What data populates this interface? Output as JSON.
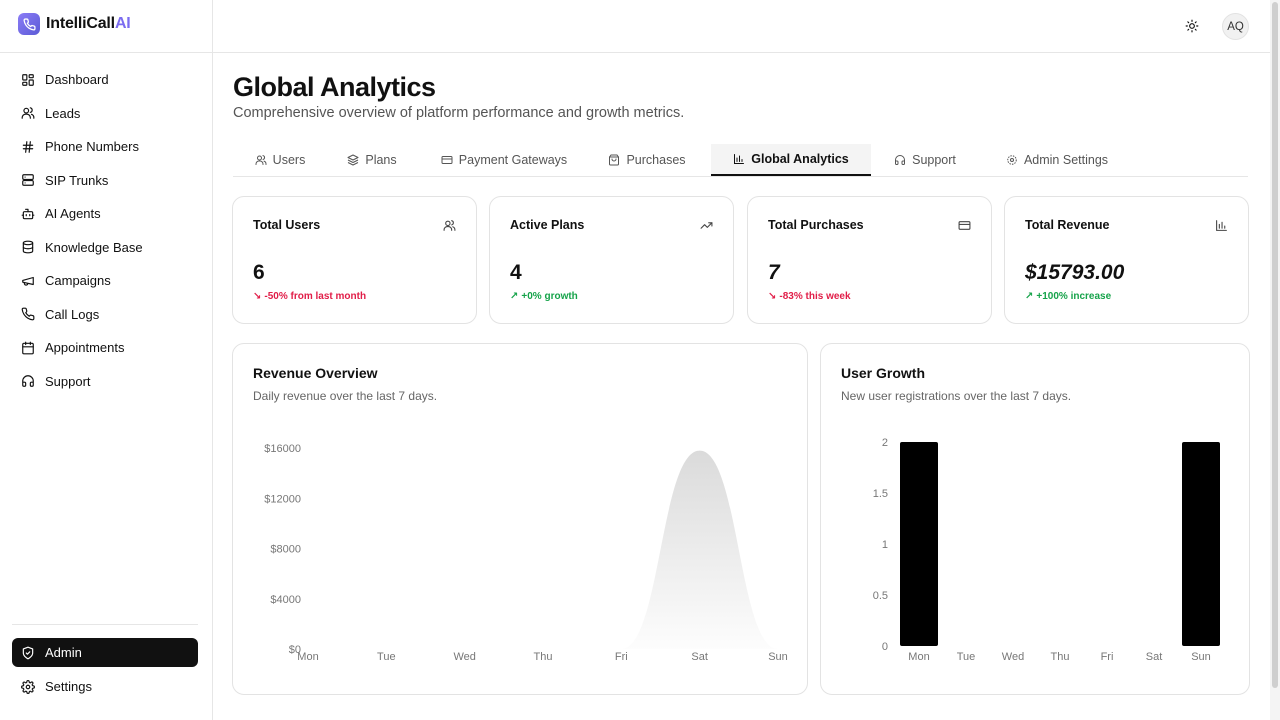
{
  "brand": {
    "name_main": "IntelliCall",
    "name_accent": "AI"
  },
  "sidebar": {
    "items": [
      {
        "label": "Dashboard",
        "icon": "dashboard-icon"
      },
      {
        "label": "Leads",
        "icon": "users-icon"
      },
      {
        "label": "Phone Numbers",
        "icon": "hash-icon"
      },
      {
        "label": "SIP Trunks",
        "icon": "server-icon"
      },
      {
        "label": "AI Agents",
        "icon": "bot-icon"
      },
      {
        "label": "Knowledge Base",
        "icon": "database-icon"
      },
      {
        "label": "Campaigns",
        "icon": "megaphone-icon"
      },
      {
        "label": "Call Logs",
        "icon": "phone-icon"
      },
      {
        "label": "Appointments",
        "icon": "calendar-icon"
      },
      {
        "label": "Support",
        "icon": "headset-icon"
      }
    ],
    "bottom": [
      {
        "label": "Admin",
        "icon": "shield-icon",
        "active": true
      },
      {
        "label": "Settings",
        "icon": "gear-icon"
      }
    ]
  },
  "header": {
    "avatar_initials": "AQ",
    "theme_icon": "sun-icon"
  },
  "page": {
    "title": "Global Analytics",
    "subtitle": "Comprehensive overview of platform performance and growth metrics."
  },
  "tabs": [
    {
      "label": "Users",
      "icon": "users-icon"
    },
    {
      "label": "Plans",
      "icon": "layers-icon"
    },
    {
      "label": "Payment Gateways",
      "icon": "credit-card-icon"
    },
    {
      "label": "Purchases",
      "icon": "shopping-bag-icon"
    },
    {
      "label": "Global Analytics",
      "icon": "bar-chart-icon",
      "active": true
    },
    {
      "label": "Support",
      "icon": "headset-icon"
    },
    {
      "label": "Admin Settings",
      "icon": "gear-icon"
    }
  ],
  "stats": [
    {
      "label": "Total Users",
      "value": "6",
      "change": "-50% from last month",
      "trend": "down",
      "icon": "users-icon"
    },
    {
      "label": "Active Plans",
      "value": "4",
      "change": "+0% growth",
      "trend": "up",
      "icon": "trending-up-icon"
    },
    {
      "label": "Total Purchases",
      "value": "7",
      "change": "-83% this week",
      "trend": "down",
      "icon": "credit-card-icon"
    },
    {
      "label": "Total Revenue",
      "value": "$15793.00",
      "change": "+100% increase",
      "trend": "up",
      "icon": "bar-chart-icon"
    }
  ],
  "colors": {
    "negative": "#e11d48",
    "positive": "#16a34a",
    "bar": "#000000",
    "area": "#d4d4d4"
  },
  "chart_data": [
    {
      "type": "area",
      "title": "Revenue Overview",
      "subtitle": "Daily revenue over the last 7 days.",
      "categories": [
        "Mon",
        "Tue",
        "Wed",
        "Thu",
        "Fri",
        "Sat",
        "Sun"
      ],
      "values": [
        0,
        0,
        0,
        0,
        0,
        15793,
        0
      ],
      "yticks": [
        "$0",
        "$4000",
        "$8000",
        "$12000",
        "$16000"
      ],
      "ylim": [
        0,
        16000
      ],
      "grid": false
    },
    {
      "type": "bar",
      "title": "User Growth",
      "subtitle": "New user registrations over the last 7 days.",
      "categories": [
        "Mon",
        "Tue",
        "Wed",
        "Thu",
        "Fri",
        "Sat",
        "Sun"
      ],
      "values": [
        2,
        0,
        0,
        0,
        0,
        0,
        2
      ],
      "yticks": [
        "0",
        "0.5",
        "1",
        "1.5",
        "2"
      ],
      "ylim": [
        0,
        2
      ],
      "grid": false
    }
  ]
}
